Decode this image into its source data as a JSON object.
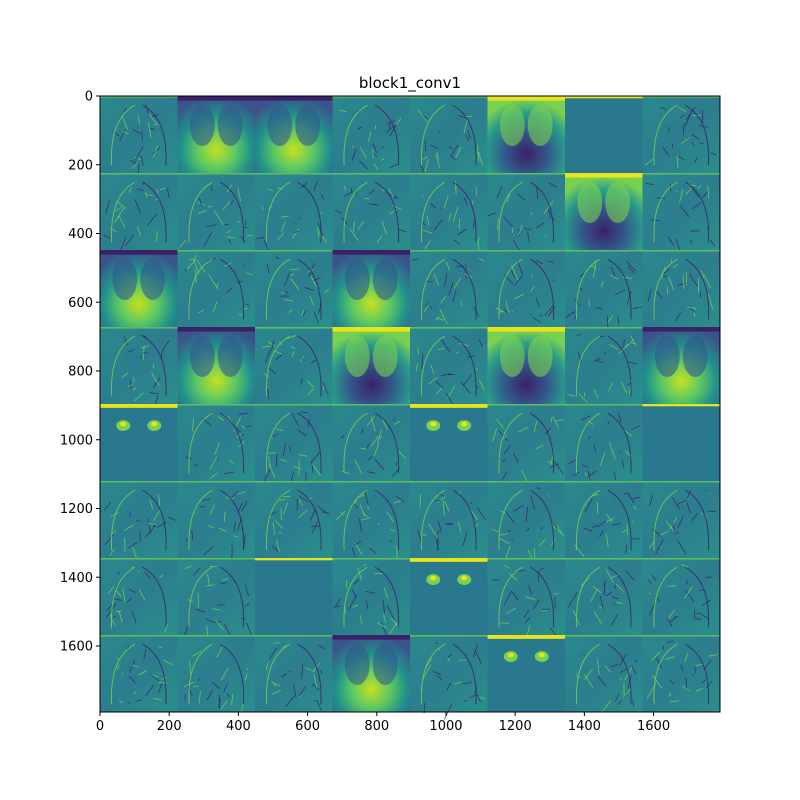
{
  "chart_data": {
    "type": "heatmap",
    "title": "block1_conv1",
    "xlabel": "",
    "ylabel": "",
    "xlim": [
      0,
      1792
    ],
    "ylim": [
      1792,
      0
    ],
    "x_ticks": [
      "0",
      "200",
      "400",
      "600",
      "800",
      "1000",
      "1200",
      "1400",
      "1600"
    ],
    "y_ticks": [
      "0",
      "200",
      "400",
      "600",
      "800",
      "1000",
      "1200",
      "1400",
      "1600"
    ],
    "grid_rows": 8,
    "grid_cols": 8,
    "tile_size": 224,
    "colormap": "viridis",
    "palette": {
      "dark": "#3b2167",
      "mid_dark": "#32598c",
      "mid": "#2a788e",
      "mid_light": "#25a584",
      "light": "#7ad151",
      "bright": "#e7e419"
    },
    "tiles": [
      [
        "edge",
        "xray",
        "xray",
        "edge",
        "edge",
        "xray-inverted",
        "flat",
        "edge"
      ],
      [
        "edge",
        "edge",
        "edge",
        "edge",
        "edge",
        "edge",
        "xray-inverted",
        "edge"
      ],
      [
        "xray",
        "edge",
        "edge",
        "xray",
        "edge",
        "edge",
        "edge",
        "edge"
      ],
      [
        "edge",
        "xray",
        "edge",
        "xray-inverted",
        "edge",
        "xray-inverted",
        "edge",
        "xray"
      ],
      [
        "blob",
        "edge",
        "edge",
        "edge",
        "blob",
        "edge",
        "edge",
        "flat"
      ],
      [
        "edge",
        "edge",
        "edge",
        "edge",
        "edge",
        "edge",
        "edge",
        "edge"
      ],
      [
        "edge",
        "edge",
        "flat",
        "edge",
        "blob",
        "edge",
        "edge",
        "edge"
      ],
      [
        "edge",
        "edge",
        "edge",
        "xray",
        "edge",
        "blob",
        "edge",
        "edge"
      ]
    ]
  }
}
